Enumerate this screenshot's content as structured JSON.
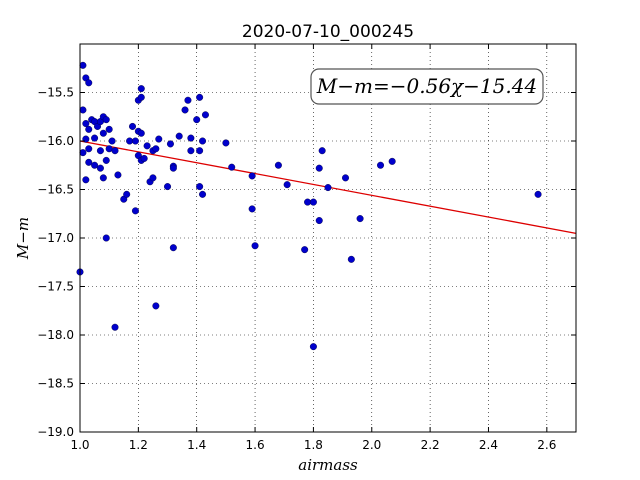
{
  "chart_data": {
    "type": "scatter",
    "title": "2020-07-10_000245",
    "xlabel": "airmass",
    "ylabel": "M−m",
    "xlim": [
      1.0,
      2.7
    ],
    "ylim": [
      -19.0,
      -15.0
    ],
    "y_inverted": true,
    "x_ticks": [
      1.0,
      1.2,
      1.4,
      1.6,
      1.8,
      2.0,
      2.2,
      2.4,
      2.6
    ],
    "x_tick_labels": [
      "1.0",
      "1.2",
      "1.4",
      "1.6",
      "1.8",
      "2.0",
      "2.2",
      "2.4",
      "2.6"
    ],
    "y_ticks": [
      -15.5,
      -16.0,
      -16.5,
      -17.0,
      -17.5,
      -18.0,
      -18.5,
      -19.0
    ],
    "y_tick_labels": [
      "−15.5",
      "−16.0",
      "−16.5",
      "−17.0",
      "−17.5",
      "−18.0",
      "−18.5",
      "−19.0"
    ],
    "grid": true,
    "annotation": "M−m=−0.56χ−15.44",
    "annotation_placement": "top-right",
    "marker_color": "#0000cc",
    "line_color": "#dd0000",
    "fit": {
      "slope": -0.56,
      "intercept": -15.44
    },
    "points": [
      [
        1.01,
        -15.22
      ],
      [
        1.02,
        -15.35
      ],
      [
        1.03,
        -15.4
      ],
      [
        1.01,
        -15.68
      ],
      [
        1.02,
        -15.82
      ],
      [
        1.03,
        -15.88
      ],
      [
        1.04,
        -15.78
      ],
      [
        1.05,
        -15.8
      ],
      [
        1.05,
        -15.97
      ],
      [
        1.06,
        -15.85
      ],
      [
        1.07,
        -15.8
      ],
      [
        1.08,
        -15.75
      ],
      [
        1.09,
        -15.78
      ],
      [
        1.08,
        -15.92
      ],
      [
        1.1,
        -15.88
      ],
      [
        1.02,
        -15.98
      ],
      [
        1.01,
        -16.12
      ],
      [
        1.03,
        -16.08
      ],
      [
        1.03,
        -16.22
      ],
      [
        1.05,
        -16.25
      ],
      [
        1.07,
        -16.28
      ],
      [
        1.07,
        -16.1
      ],
      [
        1.08,
        -16.38
      ],
      [
        1.09,
        -16.2
      ],
      [
        1.1,
        -16.08
      ],
      [
        1.11,
        -16.0
      ],
      [
        1.12,
        -16.1
      ],
      [
        1.02,
        -16.4
      ],
      [
        1.0,
        -17.35
      ],
      [
        1.09,
        -17.0
      ],
      [
        1.12,
        -17.92
      ],
      [
        1.13,
        -16.35
      ],
      [
        1.15,
        -16.6
      ],
      [
        1.16,
        -16.55
      ],
      [
        1.17,
        -16.0
      ],
      [
        1.18,
        -15.85
      ],
      [
        1.19,
        -16.0
      ],
      [
        1.19,
        -16.72
      ],
      [
        1.2,
        -15.58
      ],
      [
        1.21,
        -15.46
      ],
      [
        1.21,
        -15.55
      ],
      [
        1.2,
        -15.9
      ],
      [
        1.21,
        -15.92
      ],
      [
        1.2,
        -16.15
      ],
      [
        1.21,
        -16.2
      ],
      [
        1.22,
        -16.18
      ],
      [
        1.23,
        -16.05
      ],
      [
        1.24,
        -16.42
      ],
      [
        1.25,
        -16.38
      ],
      [
        1.25,
        -16.1
      ],
      [
        1.26,
        -16.08
      ],
      [
        1.27,
        -15.98
      ],
      [
        1.26,
        -17.7
      ],
      [
        1.3,
        -16.47
      ],
      [
        1.31,
        -16.03
      ],
      [
        1.32,
        -16.26
      ],
      [
        1.32,
        -16.28
      ],
      [
        1.32,
        -17.1
      ],
      [
        1.34,
        -15.95
      ],
      [
        1.36,
        -15.68
      ],
      [
        1.37,
        -15.58
      ],
      [
        1.38,
        -16.1
      ],
      [
        1.38,
        -15.97
      ],
      [
        1.4,
        -15.78
      ],
      [
        1.41,
        -15.55
      ],
      [
        1.41,
        -16.1
      ],
      [
        1.41,
        -16.47
      ],
      [
        1.42,
        -16.55
      ],
      [
        1.42,
        -16.0
      ],
      [
        1.43,
        -15.73
      ],
      [
        1.5,
        -16.02
      ],
      [
        1.52,
        -16.27
      ],
      [
        1.59,
        -16.36
      ],
      [
        1.59,
        -16.7
      ],
      [
        1.6,
        -17.08
      ],
      [
        1.68,
        -16.25
      ],
      [
        1.71,
        -16.45
      ],
      [
        1.77,
        -17.12
      ],
      [
        1.78,
        -16.63
      ],
      [
        1.8,
        -16.63
      ],
      [
        1.8,
        -18.12
      ],
      [
        1.82,
        -16.28
      ],
      [
        1.82,
        -16.82
      ],
      [
        1.83,
        -16.1
      ],
      [
        1.85,
        -16.48
      ],
      [
        1.91,
        -16.38
      ],
      [
        1.93,
        -17.22
      ],
      [
        1.96,
        -16.8
      ],
      [
        2.03,
        -16.25
      ],
      [
        2.07,
        -16.21
      ],
      [
        2.57,
        -16.55
      ]
    ]
  }
}
